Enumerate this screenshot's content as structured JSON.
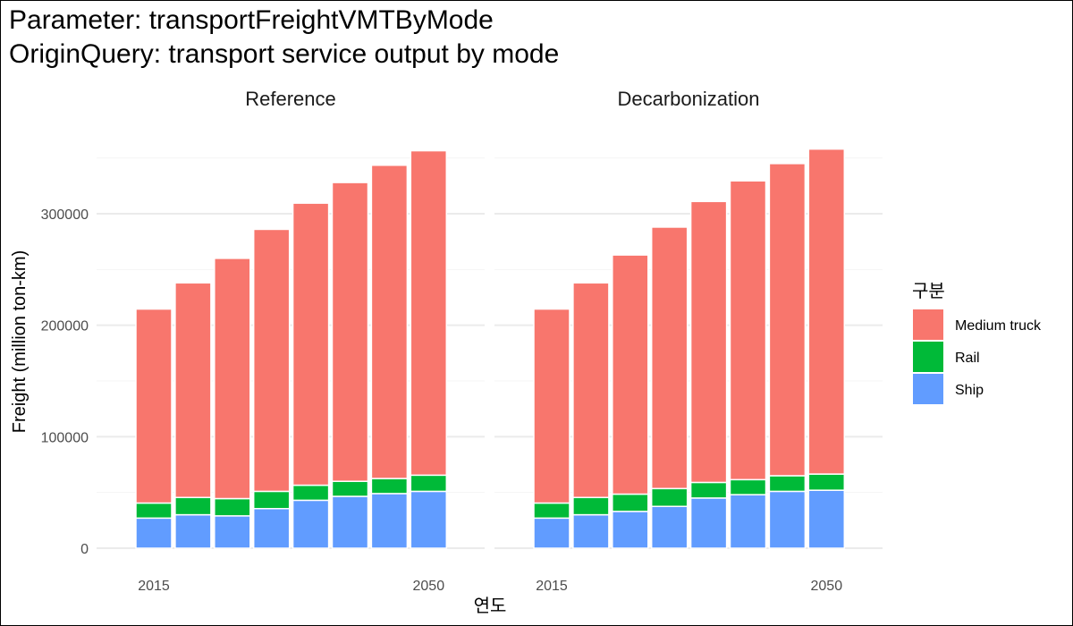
{
  "title_line1": "Parameter: transportFreightVMTByMode",
  "title_line2": "OriginQuery: transport service output by mode",
  "chart_data": {
    "type": "bar",
    "stacked": true,
    "xlabel": "연도",
    "ylabel": "Freight (million ton-km)",
    "ylim": [
      0,
      360000
    ],
    "yticks": [
      0,
      100000,
      200000,
      300000
    ],
    "ytick_labels": [
      "0",
      "100000",
      "200000",
      "300000"
    ],
    "x": [
      2015,
      2020,
      2025,
      2030,
      2035,
      2040,
      2045,
      2050
    ],
    "xtick_labels": [
      "2015",
      "2050"
    ],
    "xtick_values": [
      2015,
      2050
    ],
    "grid": true,
    "legend": {
      "title": "구분",
      "position": "right",
      "entries": [
        {
          "label": "Medium truck",
          "color": "#F8766D"
        },
        {
          "label": "Rail",
          "color": "#00BA38"
        },
        {
          "label": "Ship",
          "color": "#619CFF"
        }
      ]
    },
    "panels": [
      {
        "label": "Reference",
        "series": [
          {
            "name": "Ship",
            "color": "#619CFF",
            "values": [
              27000,
              30000,
              29000,
              35500,
              43000,
              46500,
              49000,
              51000
            ]
          },
          {
            "name": "Rail",
            "color": "#00BA38",
            "values": [
              13500,
              15500,
              15500,
              15500,
              13500,
              13500,
              13500,
              14500
            ]
          },
          {
            "name": "Medium truck",
            "color": "#F8766D",
            "values": [
              174000,
              192500,
              215500,
              235000,
              253000,
              268000,
              281000,
              291000
            ]
          }
        ]
      },
      {
        "label": "Decarbonization",
        "series": [
          {
            "name": "Ship",
            "color": "#619CFF",
            "values": [
              27000,
              30000,
              33000,
              37500,
              45000,
              48000,
              51000,
              52000
            ]
          },
          {
            "name": "Rail",
            "color": "#00BA38",
            "values": [
              13500,
              15500,
              15500,
              16000,
              14000,
              13500,
              14000,
              14500
            ]
          },
          {
            "name": "Medium truck",
            "color": "#F8766D",
            "values": [
              174000,
              192500,
              214500,
              234500,
              252000,
              268000,
              280000,
              291500
            ]
          }
        ]
      }
    ]
  }
}
